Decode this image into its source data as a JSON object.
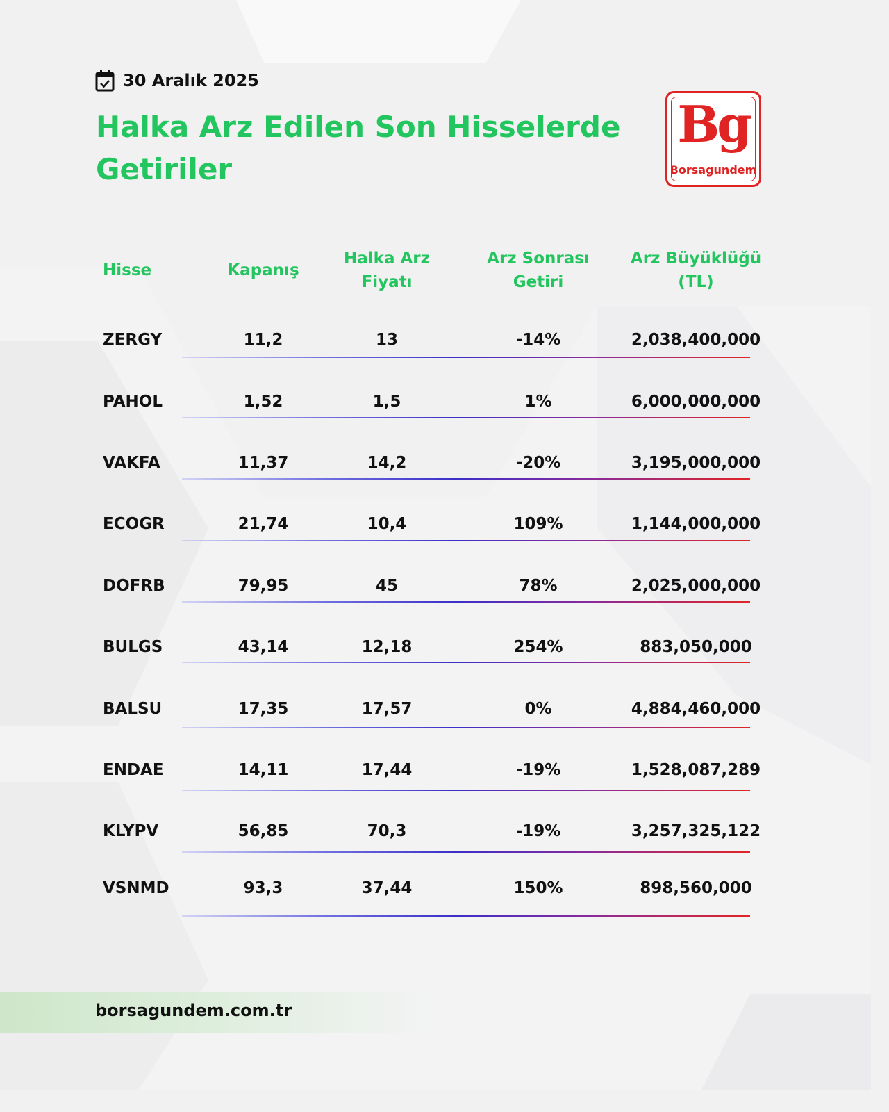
{
  "date": "30 Aralık 2025",
  "title": "Halka Arz Edilen Son Hisselerde Getiriler",
  "logo": {
    "mark": "Bg",
    "brand": "Borsagundem"
  },
  "table": {
    "headers": [
      [
        "Hisse"
      ],
      [
        "Kapanış"
      ],
      [
        "Halka Arz",
        "Fiyatı"
      ],
      [
        "Arz Sonrası",
        "Getiri"
      ],
      [
        "Arz Büyüklüğü",
        "(TL)"
      ]
    ],
    "rows": [
      [
        "ZERGY",
        "11,2",
        "13",
        "-14%",
        "2,038,400,000"
      ],
      [
        "PAHOL",
        "1,52",
        "1,5",
        "1%",
        "6,000,000,000"
      ],
      [
        "VAKFA",
        "11,37",
        "14,2",
        "-20%",
        "3,195,000,000"
      ],
      [
        "ECOGR",
        "21,74",
        "10,4",
        "109%",
        "1,144,000,000"
      ],
      [
        "DOFRB",
        "79,95",
        "45",
        "78%",
        "2,025,000,000"
      ],
      [
        "BULGS",
        "43,14",
        "12,18",
        "254%",
        "883,050,000"
      ],
      [
        "BALSU",
        "17,35",
        "17,57",
        "0%",
        "4,884,460,000"
      ],
      [
        "ENDAE",
        "14,11",
        "17,44",
        "-19%",
        "1,528,087,289"
      ],
      [
        "KLYPV",
        "56,85",
        "70,3",
        "-19%",
        "3,257,325,122"
      ],
      [
        "VSNMD",
        "93,3",
        "37,44",
        "150%",
        "898,560,000"
      ]
    ]
  },
  "footer": {
    "url": "borsagundem.com.tr"
  },
  "colors": {
    "accent_green": "#22c55e",
    "brand_red": "#e02424",
    "text": "#111111"
  }
}
